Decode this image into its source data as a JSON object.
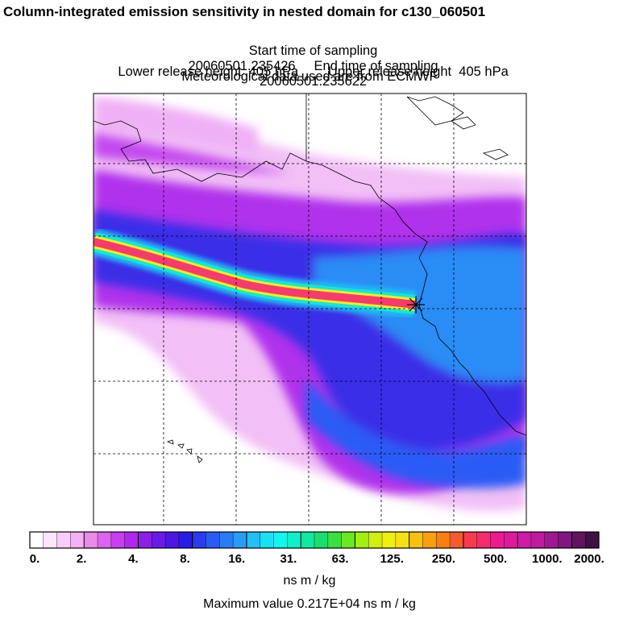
{
  "title": "Column-integrated emission sensitivity in nested domain for c130_060501",
  "sampling": {
    "start_label": "Start time of sampling",
    "start_value": "20060501.235426",
    "end_label": "End time of sampling",
    "end_value": "20060501.235622"
  },
  "release": {
    "lower_label": "Lower release height",
    "lower_value": "405 hPa",
    "upper_label": "Upper release height",
    "upper_value": "405 hPa"
  },
  "met_note": "Meteorological data used are from ECMWF",
  "colorbar": {
    "labels": [
      "0.",
      "2.",
      "4.",
      "8.",
      "16.",
      "31.",
      "63.",
      "125.",
      "250.",
      "500.",
      "1000.",
      "2000."
    ],
    "colors": [
      "#ffffff",
      "#fde6fd",
      "#f9cdf9",
      "#f5b0f5",
      "#e98be9",
      "#dc63ef",
      "#c93ef2",
      "#b127ec",
      "#8c1fe8",
      "#6b1ae6",
      "#4a17e6",
      "#2a1ce8",
      "#2a3cf0",
      "#2a5cf5",
      "#2a7cf5",
      "#2a9cf5",
      "#22c0f5",
      "#1ae0f5",
      "#10f7f0",
      "#10f0c8",
      "#10e8a0",
      "#18e070",
      "#3ae040",
      "#6ae820",
      "#a0f010",
      "#d0f010",
      "#f0f010",
      "#f8e010",
      "#f8c010",
      "#f8a010",
      "#f88010",
      "#f85a30",
      "#f83a50",
      "#f82a70",
      "#f01a90",
      "#e01aa0",
      "#d01aa8",
      "#c01aa0",
      "#a01890",
      "#801680",
      "#601460",
      "#401040"
    ],
    "unit": "ns m / kg"
  },
  "max_value": "Maximum value  0.217E+04 ns m / kg",
  "colors": {
    "plume_core": "#f83a70",
    "plume_edge_yellow": "#f0f010",
    "plume_edge_cyan": "#10f0e0",
    "broad_blue": "#2a7cf5",
    "broad_purple": "#8c1fe8",
    "light_magenta": "#f0b0f5"
  }
}
